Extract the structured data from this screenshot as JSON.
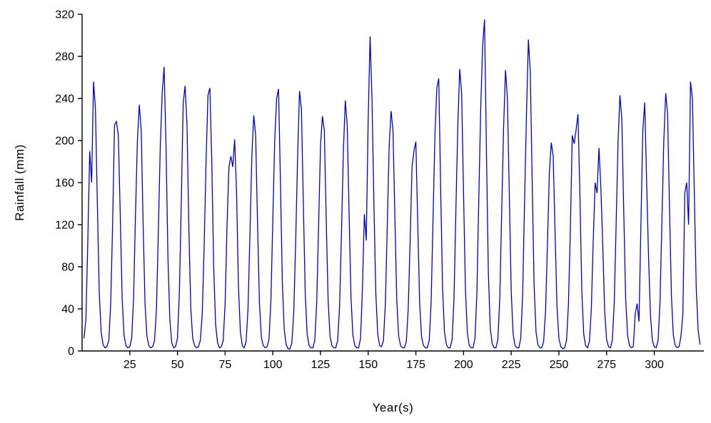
{
  "figure": {
    "background": "#ffffff",
    "line_color": "#0000cc",
    "axis_color": "#000000",
    "text_color": "#000000",
    "tick_font_size": 16,
    "label_font_size": 17
  },
  "chart_data": {
    "type": "line",
    "title": "",
    "xlabel": "Year(s)",
    "ylabel": "Rainfall (mm)",
    "xlim": [
      0,
      326
    ],
    "ylim": [
      0,
      320
    ],
    "xticks": [
      25,
      50,
      75,
      100,
      125,
      150,
      175,
      200,
      225,
      250,
      275,
      300
    ],
    "yticks": [
      0,
      40,
      80,
      120,
      160,
      200,
      240,
      280,
      320
    ],
    "grid": false,
    "legend": false,
    "x_start": 1,
    "x_step": 1,
    "series": [
      {
        "name": "Rainfall",
        "values": [
          12,
          30,
          105,
          190,
          160,
          256,
          230,
          140,
          55,
          18,
          6,
          3,
          4,
          10,
          45,
          120,
          215,
          218,
          205,
          130,
          50,
          15,
          5,
          3,
          4,
          12,
          50,
          130,
          200,
          234,
          210,
          120,
          45,
          14,
          5,
          3,
          4,
          10,
          40,
          115,
          195,
          245,
          270,
          195,
          90,
          30,
          8,
          3,
          4,
          12,
          55,
          140,
          235,
          252,
          215,
          115,
          40,
          12,
          5,
          3,
          4,
          10,
          35,
          100,
          180,
          243,
          250,
          180,
          80,
          25,
          8,
          3,
          4,
          10,
          45,
          120,
          175,
          185,
          175,
          201,
          150,
          60,
          18,
          5,
          3,
          9,
          40,
          110,
          185,
          224,
          205,
          120,
          45,
          13,
          5,
          3,
          4,
          11,
          48,
          125,
          200,
          240,
          249,
          160,
          65,
          20,
          6,
          2,
          2,
          8,
          38,
          105,
          185,
          247,
          230,
          140,
          55,
          16,
          5,
          3,
          3,
          10,
          45,
          118,
          195,
          223,
          210,
          125,
          48,
          14,
          5,
          3,
          3,
          10,
          42,
          112,
          190,
          238,
          215,
          130,
          50,
          15,
          5,
          3,
          3,
          12,
          60,
          130,
          105,
          220,
          299,
          240,
          140,
          55,
          16,
          5,
          4,
          10,
          44,
          118,
          195,
          228,
          210,
          128,
          48,
          14,
          5,
          3,
          3,
          9,
          40,
          105,
          175,
          190,
          199,
          120,
          45,
          13,
          5,
          3,
          3,
          10,
          46,
          125,
          205,
          250,
          259,
          155,
          60,
          18,
          6,
          3,
          3,
          11,
          50,
          135,
          215,
          268,
          245,
          150,
          58,
          17,
          5,
          3,
          3,
          12,
          55,
          145,
          230,
          290,
          315,
          190,
          75,
          22,
          7,
          3,
          3,
          11,
          50,
          132,
          212,
          267,
          240,
          148,
          56,
          16,
          5,
          3,
          3,
          12,
          54,
          142,
          225,
          296,
          265,
          160,
          62,
          18,
          6,
          3,
          3,
          9,
          38,
          102,
          170,
          198,
          185,
          112,
          42,
          12,
          4,
          2,
          3,
          10,
          44,
          115,
          205,
          197,
          210,
          225,
          150,
          58,
          16,
          5,
          3,
          9,
          40,
          105,
          160,
          150,
          193,
          155,
          100,
          38,
          11,
          4,
          3,
          10,
          45,
          120,
          198,
          243,
          220,
          132,
          50,
          15,
          5,
          3,
          4,
          35,
          45,
          28,
          120,
          210,
          236,
          160,
          90,
          34,
          10,
          4,
          3,
          10,
          46,
          122,
          200,
          245,
          225,
          135,
          52,
          15,
          5,
          3,
          4,
          14,
          35,
          150,
          160,
          120,
          256,
          240,
          150,
          60,
          20,
          6
        ]
      }
    ]
  }
}
